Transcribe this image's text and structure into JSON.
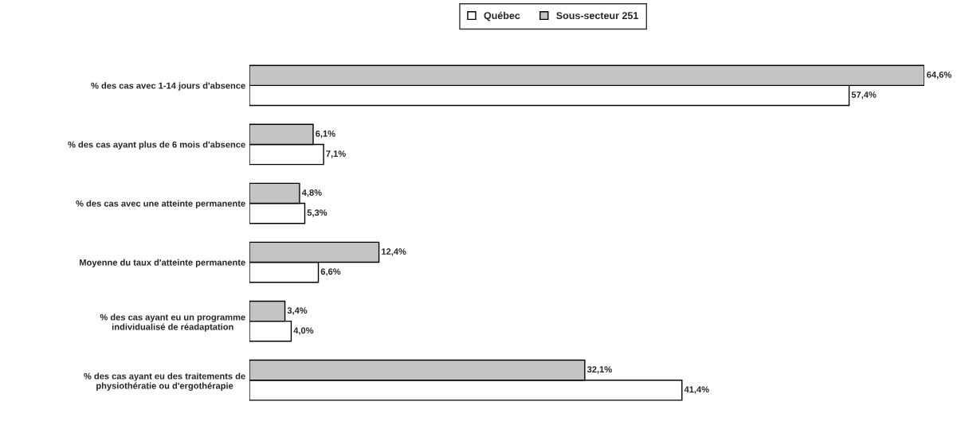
{
  "chart_data": {
    "type": "bar",
    "orientation": "horizontal",
    "categories": [
      "% des cas avec 1-14 jours d'absence",
      "% des cas ayant plus de 6 mois d'absence",
      "% des cas avec une atteinte permanente",
      "Moyenne du taux d'atteinte permanente",
      "% des cas ayant eu un programme\nindividualisé de réadaptation",
      "% des cas ayant eu des traitements de\nphysiothératie ou d'ergothérapie"
    ],
    "series": [
      {
        "name": "Québec",
        "color": "#ffffff",
        "values": [
          57.4,
          7.1,
          5.3,
          6.6,
          4.0,
          41.4
        ],
        "value_labels": [
          "57,4%",
          "7,1%",
          "5,3%",
          "6,6%",
          "4,0%",
          "41,4%"
        ]
      },
      {
        "name": "Sous-secteur 251",
        "color": "#c4c4c4",
        "values": [
          64.6,
          6.1,
          4.8,
          12.4,
          3.4,
          32.1
        ],
        "value_labels": [
          "64,6%",
          "6,1%",
          "4,8%",
          "12,4%",
          "3,4%",
          "32,1%"
        ]
      }
    ],
    "tick_labels": "y",
    "grid": false,
    "legend": "top"
  }
}
